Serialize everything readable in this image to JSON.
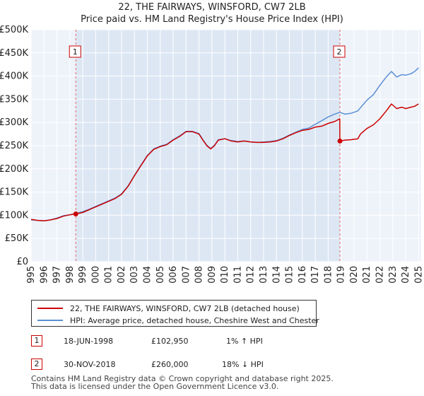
{
  "chart_data": {
    "type": "line",
    "title": "22, THE FAIRWAYS, WINSFORD, CW7 2LB",
    "subtitle": "Price paid vs. HM Land Registry's House Price Index (HPI)",
    "xlim": [
      1995,
      2025.2
    ],
    "ylim": [
      0,
      500000
    ],
    "y_ticks": [
      {
        "value": 0,
        "label": "£0"
      },
      {
        "value": 50000,
        "label": "£50K"
      },
      {
        "value": 100000,
        "label": "£100K"
      },
      {
        "value": 150000,
        "label": "£150K"
      },
      {
        "value": 200000,
        "label": "£200K"
      },
      {
        "value": 250000,
        "label": "£250K"
      },
      {
        "value": 300000,
        "label": "£300K"
      },
      {
        "value": 350000,
        "label": "£350K"
      },
      {
        "value": 400000,
        "label": "£400K"
      },
      {
        "value": 450000,
        "label": "£450K"
      },
      {
        "value": 500000,
        "label": "£500K"
      }
    ],
    "x_ticks": [
      "1995",
      "1996",
      "1997",
      "1998",
      "1999",
      "2000",
      "2001",
      "2002",
      "2003",
      "2004",
      "2005",
      "2006",
      "2007",
      "2008",
      "2009",
      "2010",
      "2011",
      "2012",
      "2013",
      "2014",
      "2015",
      "2016",
      "2017",
      "2018",
      "2019",
      "2020",
      "2021",
      "2022",
      "2023",
      "2024",
      "2025"
    ],
    "grid": true,
    "series": [
      {
        "name": "22, THE FAIRWAYS, WINSFORD, CW7 2LB (detached house)",
        "color": "#cc0000",
        "x": [
          1995.0,
          1995.5,
          1996.0,
          1996.5,
          1997.0,
          1997.5,
          1998.0,
          1998.46,
          1999.0,
          1999.5,
          2000.0,
          2000.5,
          2001.0,
          2001.5,
          2002.0,
          2002.5,
          2003.0,
          2003.5,
          2004.0,
          2004.5,
          2005.0,
          2005.5,
          2006.0,
          2006.5,
          2007.0,
          2007.5,
          2008.0,
          2008.3,
          2008.6,
          2008.9,
          2009.2,
          2009.5,
          2010.0,
          2010.5,
          2011.0,
          2011.5,
          2012.0,
          2012.5,
          2013.0,
          2013.5,
          2014.0,
          2014.5,
          2015.0,
          2015.5,
          2016.0,
          2016.5,
          2017.0,
          2017.5,
          2018.0,
          2018.5,
          2018.9,
          2018.91,
          2019.3,
          2019.8,
          2020.3,
          2020.5,
          2021.0,
          2021.5,
          2022.0,
          2022.5,
          2022.9,
          2023.3,
          2023.7,
          2024.0,
          2024.4,
          2024.7,
          2025.0
        ],
        "y": [
          91000,
          89000,
          88000,
          90000,
          93000,
          98000,
          101000,
          102950,
          106000,
          112000,
          118000,
          124000,
          130000,
          136000,
          145000,
          162000,
          185000,
          207000,
          228000,
          242000,
          248000,
          252000,
          262000,
          270000,
          280000,
          280000,
          275000,
          262000,
          250000,
          243000,
          250000,
          262000,
          265000,
          260000,
          258000,
          260000,
          258000,
          257000,
          257000,
          258000,
          260000,
          265000,
          272000,
          278000,
          283000,
          285000,
          290000,
          292000,
          298000,
          302000,
          308000,
          260000,
          262000,
          263000,
          265000,
          275000,
          287000,
          295000,
          308000,
          325000,
          340000,
          330000,
          333000,
          330000,
          333000,
          335000,
          340000
        ]
      },
      {
        "name": "HPI: Average price, detached house, Cheshire West and Chester",
        "color": "#5b8fd4",
        "x": [
          1995.0,
          1995.5,
          1996.0,
          1996.5,
          1997.0,
          1997.5,
          1998.0,
          1998.5,
          1999.0,
          1999.5,
          2000.0,
          2000.5,
          2001.0,
          2001.5,
          2002.0,
          2002.5,
          2003.0,
          2003.5,
          2004.0,
          2004.5,
          2005.0,
          2005.5,
          2006.0,
          2006.5,
          2007.0,
          2007.5,
          2008.0,
          2008.3,
          2008.6,
          2008.9,
          2009.2,
          2009.5,
          2010.0,
          2010.5,
          2011.0,
          2011.5,
          2012.0,
          2012.5,
          2013.0,
          2013.5,
          2014.0,
          2014.5,
          2015.0,
          2015.5,
          2016.0,
          2016.5,
          2017.0,
          2017.5,
          2018.0,
          2018.5,
          2018.9,
          2019.3,
          2019.8,
          2020.3,
          2020.6,
          2021.0,
          2021.5,
          2022.0,
          2022.5,
          2022.9,
          2023.3,
          2023.7,
          2024.0,
          2024.4,
          2024.7,
          2025.0
        ],
        "y": [
          90000,
          89000,
          88000,
          90000,
          94000,
          99000,
          101000,
          104000,
          108000,
          113000,
          119000,
          125000,
          131000,
          137000,
          146000,
          163000,
          186000,
          208000,
          229000,
          243000,
          249000,
          253000,
          263000,
          271000,
          281000,
          281000,
          276000,
          263000,
          251000,
          244000,
          251000,
          263000,
          265000,
          261000,
          259000,
          260000,
          258000,
          257000,
          258000,
          259000,
          261000,
          266000,
          273000,
          279000,
          285000,
          288000,
          296000,
          304000,
          312000,
          318000,
          322000,
          318000,
          320000,
          325000,
          335000,
          348000,
          360000,
          380000,
          398000,
          410000,
          398000,
          403000,
          402000,
          405000,
          410000,
          418000
        ]
      }
    ],
    "legend": [
      {
        "label": "22, THE FAIRWAYS, WINSFORD, CW7 2LB (detached house)",
        "color": "#cc0000"
      },
      {
        "label": "HPI: Average price, detached house, Cheshire West and Chester",
        "color": "#5b8fd4"
      }
    ],
    "markers": [
      {
        "label": "1",
        "x": 1998.46,
        "y": 102950
      },
      {
        "label": "2",
        "x": 2018.91,
        "y": 260000
      }
    ]
  },
  "sales": [
    {
      "num": "1",
      "date": "18-JUN-1998",
      "price": "£102,950",
      "hpi": "1% ↑ HPI"
    },
    {
      "num": "2",
      "date": "30-NOV-2018",
      "price": "£260,000",
      "hpi": "18% ↓ HPI"
    }
  ],
  "footer": {
    "line1": "Contains HM Land Registry data © Crown copyright and database right 2025.",
    "line2": "This data is licensed under the Open Government Licence v3.0."
  },
  "colors": {
    "property": "#cc0000",
    "hpi": "#5b8fd4",
    "plot_bg": "#eef3fa",
    "highlight_bg": "#dde7f4"
  }
}
